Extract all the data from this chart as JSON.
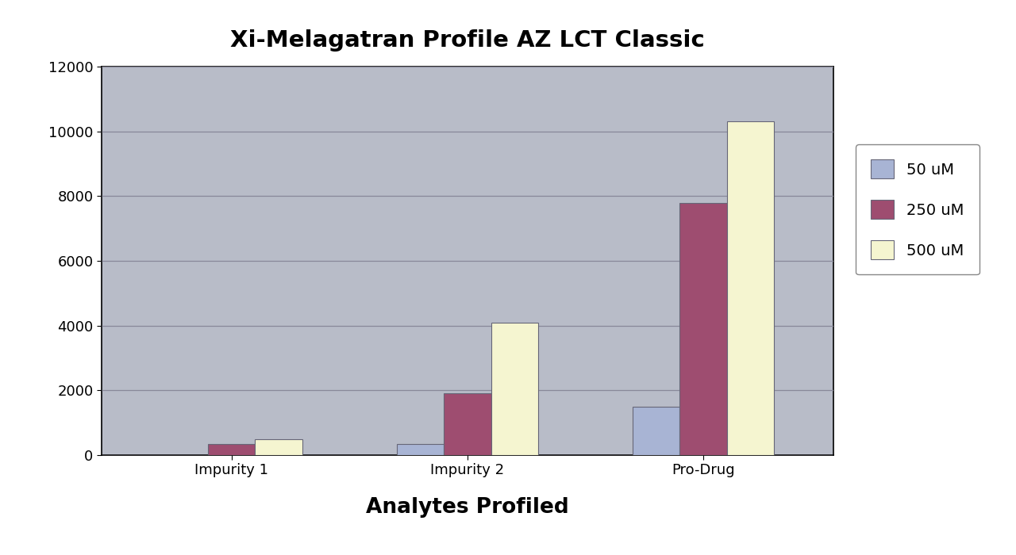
{
  "title": "Xi-Melagatran Profile AZ LCT Classic",
  "xlabel": "Analytes Profiled",
  "ylabel": "",
  "categories": [
    "Impurity 1",
    "Impurity 2",
    "Pro-Drug"
  ],
  "series": [
    {
      "label": "50 uM",
      "color": "#a8b4d4",
      "values": [
        0,
        350,
        1500
      ]
    },
    {
      "label": "250 uM",
      "color": "#9e4d70",
      "values": [
        350,
        1900,
        7800
      ]
    },
    {
      "label": "500 uM",
      "color": "#f5f5d0",
      "values": [
        500,
        4100,
        10300
      ]
    }
  ],
  "ylim": [
    0,
    12000
  ],
  "yticks": [
    0,
    2000,
    4000,
    6000,
    8000,
    10000,
    12000
  ],
  "plot_bg_color": "#b8bcc8",
  "fig_bg_color": "#ffffff",
  "bar_width": 0.2,
  "title_fontsize": 21,
  "xlabel_fontsize": 19,
  "tick_fontsize": 13,
  "legend_fontsize": 14,
  "grid_color": "#888899",
  "axis_linewidth": 1.2
}
